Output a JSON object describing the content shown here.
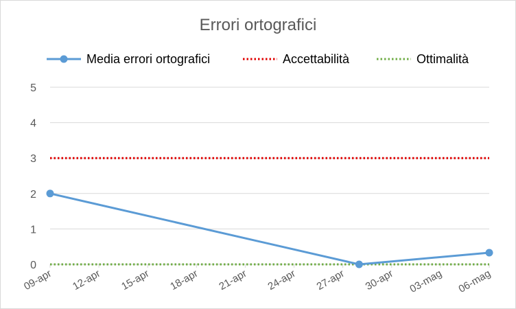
{
  "chart_data": {
    "type": "line",
    "title": "Errori ortografici",
    "xlabel": "",
    "ylabel": "",
    "x_ticks": [
      "09-apr",
      "12-apr",
      "15-apr",
      "18-apr",
      "21-apr",
      "24-apr",
      "27-apr",
      "30-apr",
      "03-mag",
      "06-mag"
    ],
    "xlim": [
      "09-apr",
      "06-mag"
    ],
    "ylim": [
      0,
      5
    ],
    "y_ticks": [
      0,
      1,
      2,
      3,
      4,
      5
    ],
    "grid": true,
    "legend_position": "top",
    "series": [
      {
        "name": "Media errori ortografici",
        "style": "solid-with-markers",
        "color": "#5b9bd5",
        "x": [
          "09-apr",
          "28-apr",
          "06-mag"
        ],
        "y": [
          2,
          0,
          0.33
        ]
      },
      {
        "name": "Accettabilità",
        "style": "dotted",
        "color": "#e00000",
        "x": [
          "09-apr",
          "06-mag"
        ],
        "y": [
          3,
          3
        ]
      },
      {
        "name": "Ottimalità",
        "style": "dotted",
        "color": "#70ad47",
        "x": [
          "09-apr",
          "06-mag"
        ],
        "y": [
          0,
          0
        ]
      }
    ]
  }
}
